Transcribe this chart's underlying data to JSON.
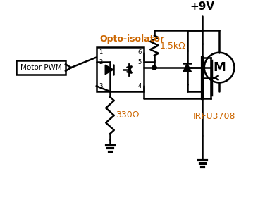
{
  "bg_color": "#ffffff",
  "line_color": "#000000",
  "label_color_orange": "#cc6600",
  "label_color_black": "#000000",
  "title": "+9V",
  "motor_pwm_label": "Motor PWM",
  "opto_label": "Opto-isolator",
  "r1_label": "1.5kΩ",
  "r2_label": "330Ω",
  "irfu_label": "IRFU3708",
  "m_label": "M",
  "figsize": [
    3.76,
    2.9
  ],
  "dpi": 100
}
